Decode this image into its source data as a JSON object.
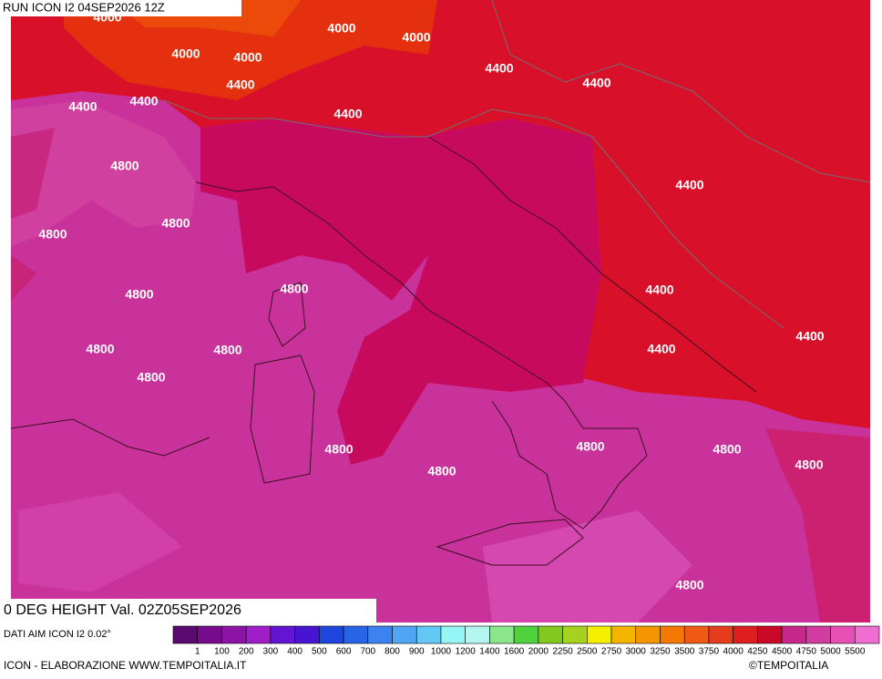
{
  "header": {
    "title": "RUN ICON I2 04SEP2026 12Z"
  },
  "contour_labels": [
    4000,
    4000,
    4000,
    4000,
    4000,
    4400,
    4400,
    4400,
    4400,
    4400,
    4400,
    4800,
    4400,
    4800,
    4800,
    4800,
    4800,
    4400,
    4800,
    4800,
    4400,
    4400,
    4800,
    4800,
    4800,
    4800,
    4800,
    4800,
    4800
  ],
  "footer": {
    "field": "0 DEG HEIGHT Val. 02Z05SEP2026",
    "source": "DATI AIM ICON I2 0.02°",
    "credit": "ICON - ELABORAZIONE WWW.TEMPOITALIA.IT",
    "copyright": "©TEMPOITALIA"
  },
  "legend": {
    "colors": [
      "#5a0a6e",
      "#780a8c",
      "#8c14a5",
      "#a01ec8",
      "#8214d2",
      "#6414d2",
      "#4614d2",
      "#1e46dc",
      "#2864e6",
      "#3c82f0",
      "#50a5f5",
      "#64c8f5",
      "#78e6f5",
      "#96f5f5",
      "#b4f5f0",
      "#8ce68c",
      "#50d23c",
      "#82c81e",
      "#a5d21e",
      "#f5f000",
      "#f5d200",
      "#f5b400",
      "#f59600",
      "#f57800",
      "#f05a14",
      "#e63c1e",
      "#dc1e1e",
      "#c80a28",
      "#c8005a",
      "#c8288c",
      "#d23ca0",
      "#e650b4",
      "#f06ed2"
    ],
    "labels": [
      1,
      100,
      200,
      300,
      400,
      500,
      600,
      700,
      800,
      900,
      1000,
      1200,
      1400,
      1600,
      2000,
      2250,
      2500,
      2750,
      3000,
      3250,
      3500,
      3750,
      4000,
      4250,
      4500,
      4750,
      5000,
      5500
    ]
  }
}
